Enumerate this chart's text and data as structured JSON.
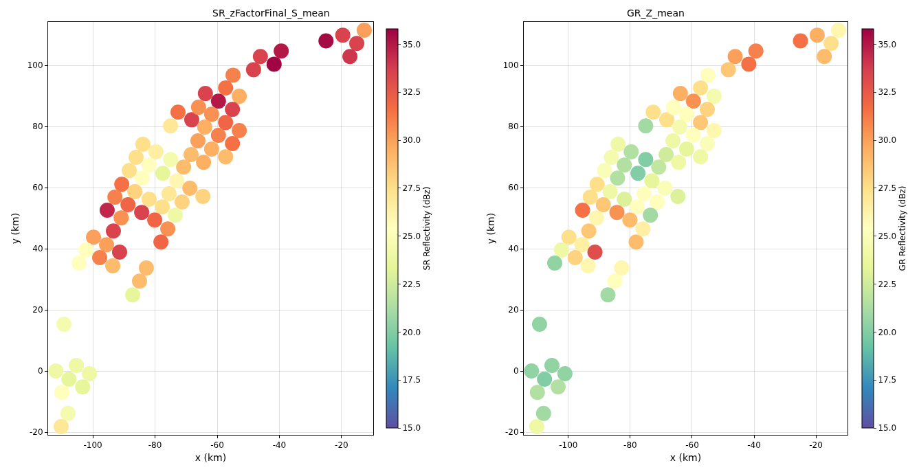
{
  "chart_data": [
    {
      "type": "scatter",
      "title": "SR_zFactorFinal_S_mean",
      "xlabel": "x (km)",
      "ylabel": "y (km)",
      "clabel": "SR Reflectivity (dBz)",
      "grid": true,
      "marker": "circle",
      "xlim": [
        -114.4,
        -9.8
      ],
      "ylim": [
        -20.9,
        114.2
      ],
      "xticks": [
        -100,
        -80,
        -60,
        -40,
        -20
      ],
      "yticks": [
        -20,
        0,
        20,
        40,
        60,
        80,
        100
      ],
      "clim": [
        15,
        35.8
      ],
      "cticks": [
        {
          "value": 15,
          "label": "15.0"
        },
        {
          "value": 17.5,
          "label": "17.5"
        },
        {
          "value": 20,
          "label": "20.0"
        },
        {
          "value": 22.5,
          "label": "22.5"
        },
        {
          "value": 25,
          "label": "25.0"
        },
        {
          "value": 27.5,
          "label": "27.5"
        },
        {
          "value": 30,
          "label": "30.0"
        },
        {
          "value": 32.5,
          "label": "32.5"
        },
        {
          "value": 35,
          "label": "35.0"
        }
      ],
      "x": [
        -25.0,
        -19.6,
        -15.1,
        -17.3,
        -12.7,
        -39.4,
        -41.7,
        -46.1,
        -48.3,
        -54.9,
        -57.3,
        -52.9,
        -63.8,
        -59.6,
        -55.1,
        -72.6,
        -68.2,
        -66.0,
        -61.8,
        -57.3,
        -75.0,
        -64.0,
        -59.6,
        -52.9,
        -66.2,
        -55.1,
        -61.8,
        -68.4,
        -57.3,
        -64.4,
        -70.8,
        -75.0,
        -77.5,
        -79.7,
        -83.9,
        -86.1,
        -81.9,
        -88.3,
        -84.1,
        -73.0,
        -81.9,
        -90.7,
        -75.5,
        -68.8,
        -77.7,
        -71.3,
        -64.6,
        -73.5,
        -86.5,
        -92.9,
        -95.4,
        -88.7,
        -90.9,
        -84.3,
        -80.1,
        -93.4,
        -99.8,
        -95.6,
        -102.2,
        -104.4,
        -97.8,
        -91.4,
        -93.6,
        -78.1,
        -75.9,
        -82.8,
        -85.0,
        -87.2,
        -109.3,
        -111.9,
        -105.3,
        -107.7,
        -101.1,
        -103.3,
        -110.0,
        -108.0,
        -110.2
      ],
      "values": [
        108.0,
        109.9,
        107.2,
        102.9,
        111.5,
        104.7,
        100.4,
        102.9,
        98.6,
        96.8,
        92.6,
        89.9,
        90.8,
        88.3,
        85.6,
        84.7,
        82.2,
        86.3,
        84.0,
        81.3,
        80.2,
        79.8,
        77.1,
        78.7,
        75.3,
        74.4,
        72.6,
        70.8,
        70.1,
        68.3,
        66.7,
        69.2,
        64.7,
        71.7,
        74.2,
        69.9,
        67.4,
        65.6,
        63.1,
        62.2,
        56.2,
        61.1,
        58.0,
        59.8,
        53.7,
        55.3,
        57.1,
        51.0,
        58.7,
        56.9,
        52.6,
        54.4,
        50.1,
        51.9,
        49.4,
        45.8,
        43.8,
        41.3,
        39.6,
        35.3,
        37.1,
        38.9,
        34.4,
        42.2,
        46.5,
        33.7,
        29.4,
        24.9,
        15.3,
        0.0,
        1.8,
        -2.7,
        -0.9,
        -5.2,
        -7.0,
        -13.9,
        -18.2
      ],
      "cvalues": [
        35.5,
        33.5,
        33.5,
        34,
        30,
        35,
        35.7,
        33.5,
        33.5,
        31,
        31.5,
        29.5,
        33.5,
        35,
        33.5,
        31.5,
        33.5,
        30.5,
        30.5,
        32,
        27,
        29.5,
        31,
        31,
        30,
        31.5,
        29.5,
        29,
        29,
        29.5,
        29,
        24.5,
        23.5,
        26.5,
        27.5,
        27.5,
        25.5,
        27.5,
        25.5,
        26,
        27.5,
        31.5,
        27,
        29,
        27.5,
        28,
        28,
        24,
        28,
        31,
        34.5,
        32,
        30.5,
        33.5,
        32,
        33.5,
        30,
        30,
        25.5,
        25.5,
        31,
        33.5,
        29,
        32,
        30.5,
        29,
        29,
        23.5,
        24.5,
        24,
        24,
        23.5,
        24,
        23.5,
        25.5,
        24.5,
        27
      ]
    },
    {
      "type": "scatter",
      "title": "GR_Z_mean",
      "xlabel": "x (km)",
      "ylabel": "y (km)",
      "clabel": "GR Reflectivity (dBz)",
      "grid": true,
      "marker": "circle",
      "xlim": [
        -114.4,
        -9.8
      ],
      "ylim": [
        -20.9,
        114.2
      ],
      "xticks": [
        -100,
        -80,
        -60,
        -40,
        -20
      ],
      "yticks": [
        -20,
        0,
        20,
        40,
        60,
        80,
        100
      ],
      "clim": [
        15,
        35.8
      ],
      "cticks": [
        {
          "value": 15,
          "label": "15.0"
        },
        {
          "value": 17.5,
          "label": "17.5"
        },
        {
          "value": 20,
          "label": "20.0"
        },
        {
          "value": 22.5,
          "label": "22.5"
        },
        {
          "value": 25,
          "label": "25.0"
        },
        {
          "value": 27.5,
          "label": "27.5"
        },
        {
          "value": 30,
          "label": "30.0"
        },
        {
          "value": 32.5,
          "label": "32.5"
        },
        {
          "value": 35,
          "label": "35.0"
        }
      ],
      "x": [
        -25.0,
        -19.6,
        -15.1,
        -17.3,
        -12.7,
        -39.4,
        -41.7,
        -46.1,
        -48.3,
        -54.9,
        -57.3,
        -52.9,
        -63.8,
        -59.6,
        -55.1,
        -72.6,
        -68.2,
        -66.0,
        -61.8,
        -57.3,
        -75.0,
        -64.0,
        -59.6,
        -52.9,
        -66.2,
        -55.1,
        -61.8,
        -68.4,
        -57.3,
        -64.4,
        -70.8,
        -75.0,
        -77.5,
        -79.7,
        -83.9,
        -86.1,
        -81.9,
        -88.3,
        -84.1,
        -73.0,
        -81.9,
        -90.7,
        -75.5,
        -68.8,
        -77.7,
        -71.3,
        -64.6,
        -73.5,
        -86.5,
        -92.9,
        -95.4,
        -88.7,
        -90.9,
        -84.3,
        -80.1,
        -93.4,
        -99.8,
        -95.6,
        -102.2,
        -104.4,
        -97.8,
        -91.4,
        -93.6,
        -78.1,
        -75.9,
        -82.8,
        -85.0,
        -87.2,
        -109.3,
        -111.9,
        -105.3,
        -107.7,
        -101.1,
        -103.3,
        -110.0,
        -108.0,
        -110.2
      ],
      "values": [
        108.0,
        109.9,
        107.2,
        102.9,
        111.5,
        104.7,
        100.4,
        102.9,
        98.6,
        96.8,
        92.6,
        89.9,
        90.8,
        88.3,
        85.6,
        84.7,
        82.2,
        86.3,
        84.0,
        81.3,
        80.2,
        79.8,
        77.1,
        78.7,
        75.3,
        74.4,
        72.6,
        70.8,
        70.1,
        68.3,
        66.7,
        69.2,
        64.7,
        71.7,
        74.2,
        69.9,
        67.4,
        65.6,
        63.1,
        62.2,
        56.2,
        61.1,
        58.0,
        59.8,
        53.7,
        55.3,
        57.1,
        51.0,
        58.7,
        56.9,
        52.6,
        54.4,
        50.1,
        51.9,
        49.4,
        45.8,
        43.8,
        41.3,
        39.6,
        35.3,
        37.1,
        38.9,
        34.4,
        42.2,
        46.5,
        33.7,
        29.4,
        24.9,
        15.3,
        0.0,
        1.8,
        -2.7,
        -0.9,
        -5.2,
        -7.0,
        -13.9,
        -18.2
      ],
      "cvalues": [
        31.5,
        29.5,
        27.5,
        29,
        26,
        31,
        31.5,
        30,
        28.5,
        25.5,
        27.5,
        24.5,
        29.5,
        30.5,
        28,
        27.5,
        27.5,
        25.5,
        25.5,
        28.5,
        21,
        24.5,
        25.5,
        26,
        24,
        25,
        23.5,
        22.5,
        24,
        24,
        22,
        20,
        20,
        21.5,
        24,
        24.5,
        21.5,
        25,
        21.5,
        23.5,
        23,
        27.5,
        25.5,
        25,
        25.5,
        25.5,
        23,
        21,
        24,
        27.5,
        31.5,
        28.5,
        26,
        30.5,
        29,
        28.5,
        27.5,
        26.5,
        24,
        20.5,
        28,
        33,
        26,
        29,
        26.5,
        26,
        25.5,
        21,
        20.5,
        20.5,
        20.5,
        20,
        20.5,
        21.5,
        21.5,
        21,
        24
      ]
    }
  ]
}
